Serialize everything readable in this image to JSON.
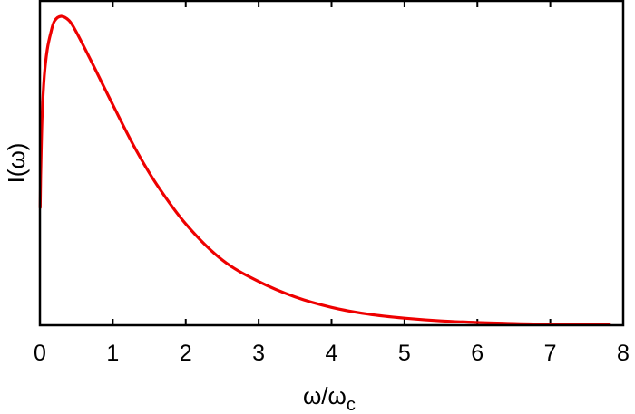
{
  "chart_data": {
    "type": "line",
    "title": "",
    "xlabel": "ω/ω_c",
    "xlabel_main": "ω/ω",
    "xlabel_sub": "c",
    "ylabel": "I(ω)",
    "xlim": [
      0,
      8
    ],
    "ylim": [
      0,
      1
    ],
    "x_ticks": [
      "0",
      "1",
      "2",
      "3",
      "4",
      "5",
      "6",
      "7",
      "8"
    ],
    "y_ticks": [],
    "grid": false,
    "legend": "none",
    "series": [
      {
        "name": "I(ω)",
        "color": "#ee0000",
        "x": [
          0.004,
          0.01,
          0.03,
          0.06,
          0.1,
          0.15,
          0.2,
          0.29,
          0.4,
          0.5,
          0.7,
          1.0,
          1.3,
          1.6,
          2.0,
          2.5,
          3.0,
          3.5,
          4.0,
          4.5,
          5.0,
          5.5,
          6.0,
          6.5,
          7.0,
          7.5,
          7.8
        ],
        "values": [
          0.35,
          0.445,
          0.62,
          0.74,
          0.818,
          0.87,
          0.904,
          0.918,
          0.905,
          0.871,
          0.786,
          0.655,
          0.528,
          0.419,
          0.301,
          0.194,
          0.13,
          0.084,
          0.053,
          0.033,
          0.021,
          0.013,
          0.008,
          0.005,
          0.003,
          0.002,
          0.0015
        ]
      }
    ]
  }
}
